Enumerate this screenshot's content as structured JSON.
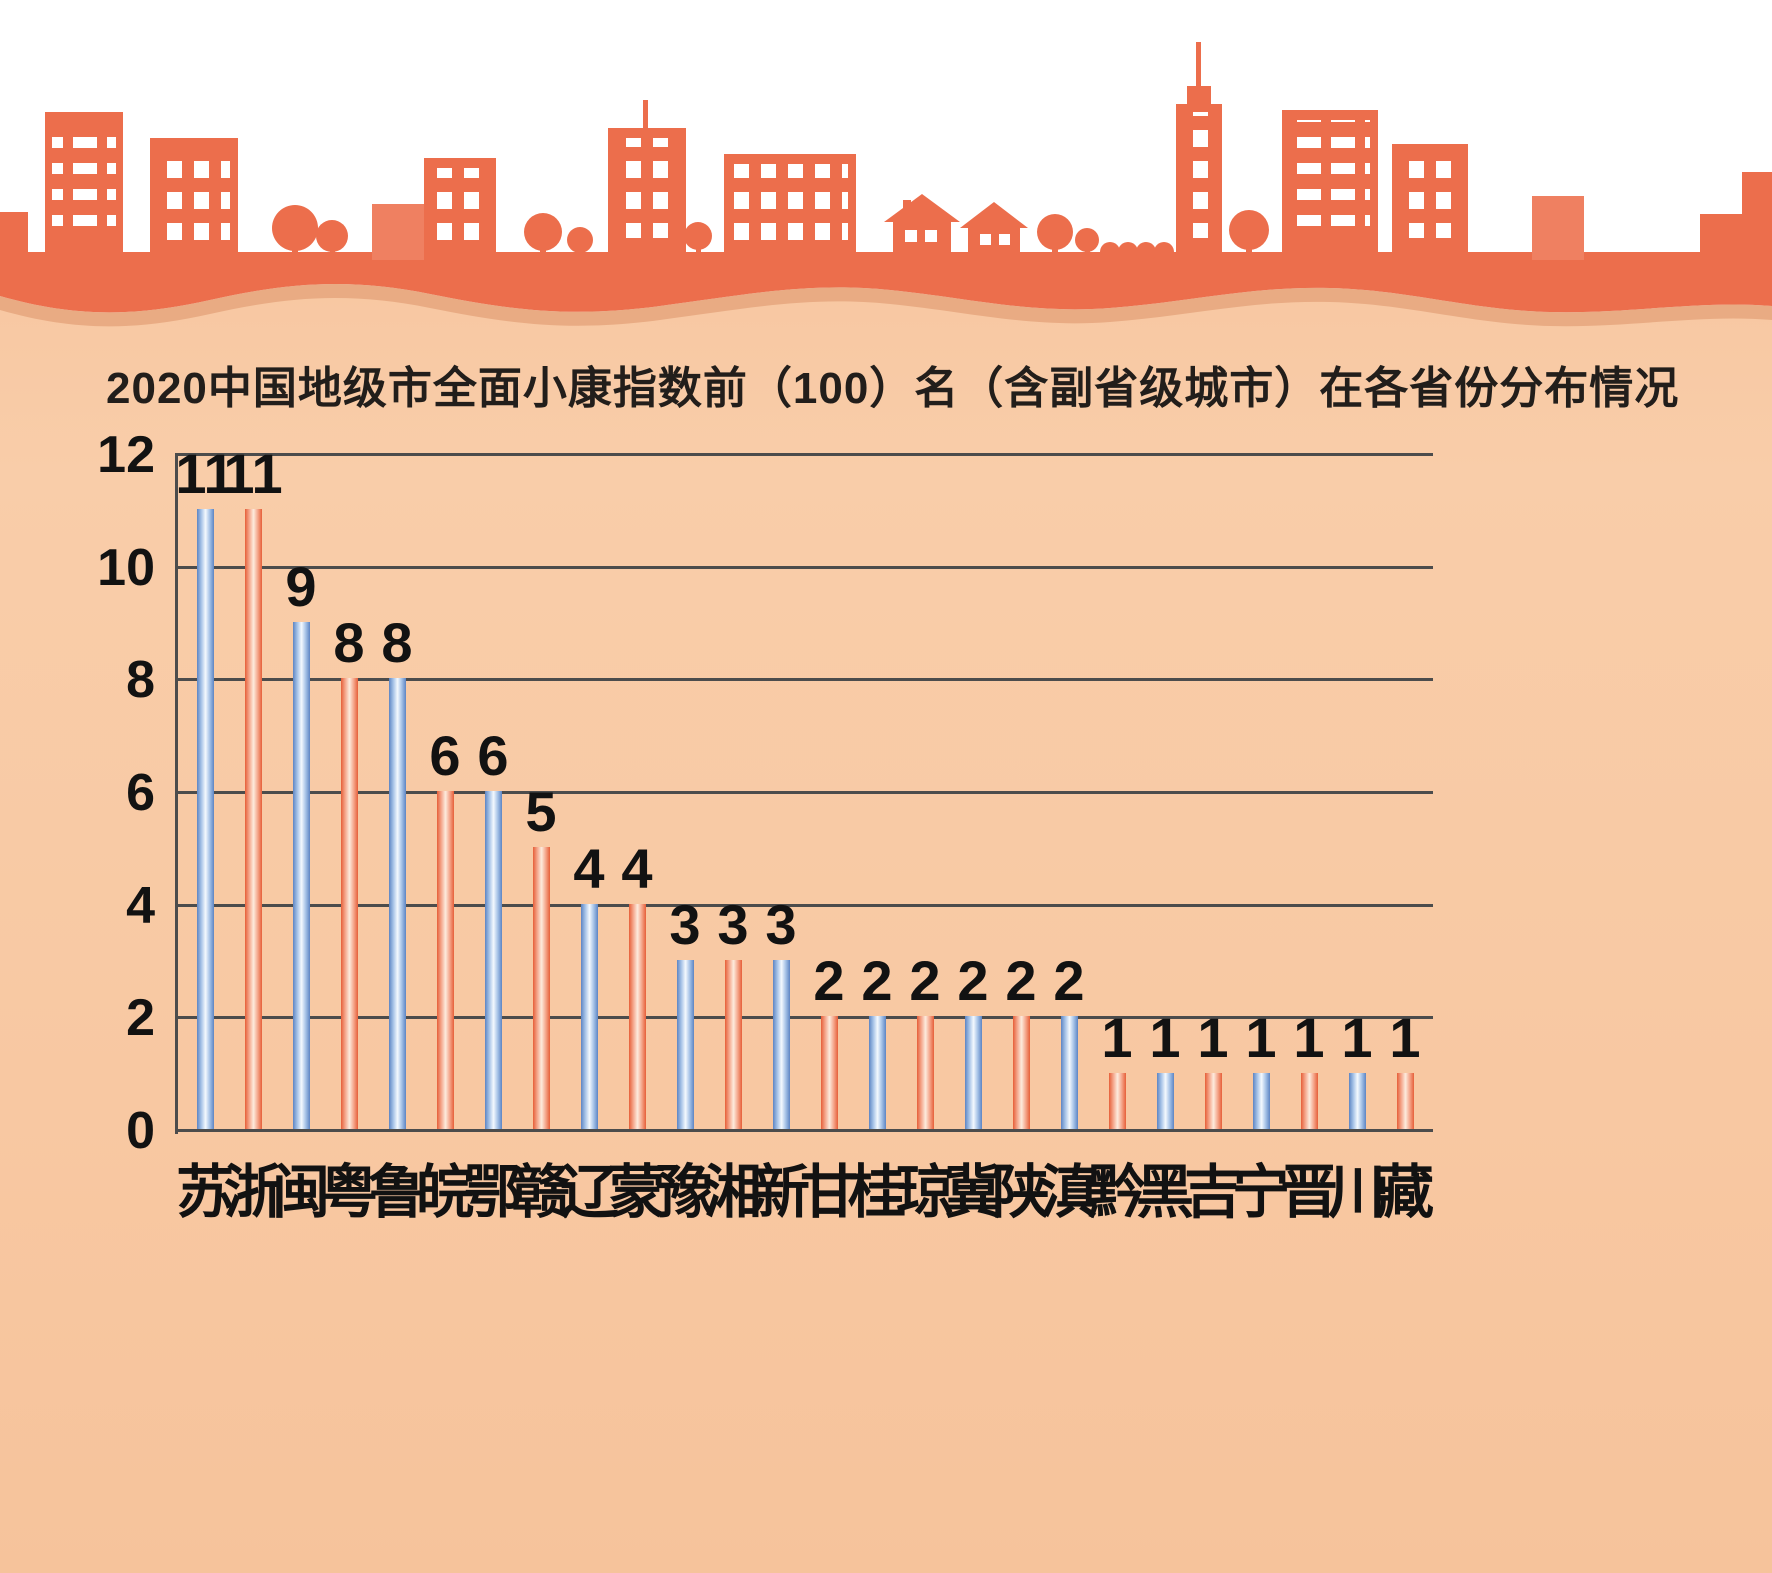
{
  "chart_data": {
    "type": "bar",
    "title": "2020中国地级市全面小康指数前（100）名（含副省级城市）在各省份分布情况",
    "categories": [
      "苏",
      "浙",
      "闽",
      "粤",
      "鲁",
      "皖",
      "鄂",
      "赣",
      "辽",
      "蒙",
      "豫",
      "湘",
      "新",
      "甘",
      "桂",
      "琼",
      "冀",
      "陕",
      "滇",
      "黔",
      "黑",
      "吉",
      "宁",
      "晋",
      "川",
      "藏"
    ],
    "values": [
      11,
      11,
      9,
      8,
      8,
      6,
      6,
      5,
      4,
      4,
      3,
      3,
      3,
      2,
      2,
      2,
      2,
      2,
      2,
      1,
      1,
      1,
      1,
      1,
      1,
      1
    ],
    "bar_color_sequence": "alternating blue / red starting with blue",
    "xlabel": "",
    "ylabel": "",
    "ylim": [
      0,
      12
    ],
    "yticks": [
      0,
      2,
      4,
      6,
      8,
      10,
      12
    ],
    "grid": true,
    "legend": "none",
    "colors": {
      "blue_edge": "#5d85c3",
      "blue_mid": "#a8c4e8",
      "blue_center": "#f4f9fe",
      "red_edge": "#e65f39",
      "red_mid": "#f5a98e",
      "red_center": "#fdebdd",
      "grid_line": "#4c4c4c",
      "label_text": "#121212",
      "title_text": "#221e1b",
      "background": "#f8c8a2",
      "skyline": "#ec6e4c",
      "skyline_light": "#ef8061",
      "wave_shadow": "#e9ab83"
    }
  }
}
